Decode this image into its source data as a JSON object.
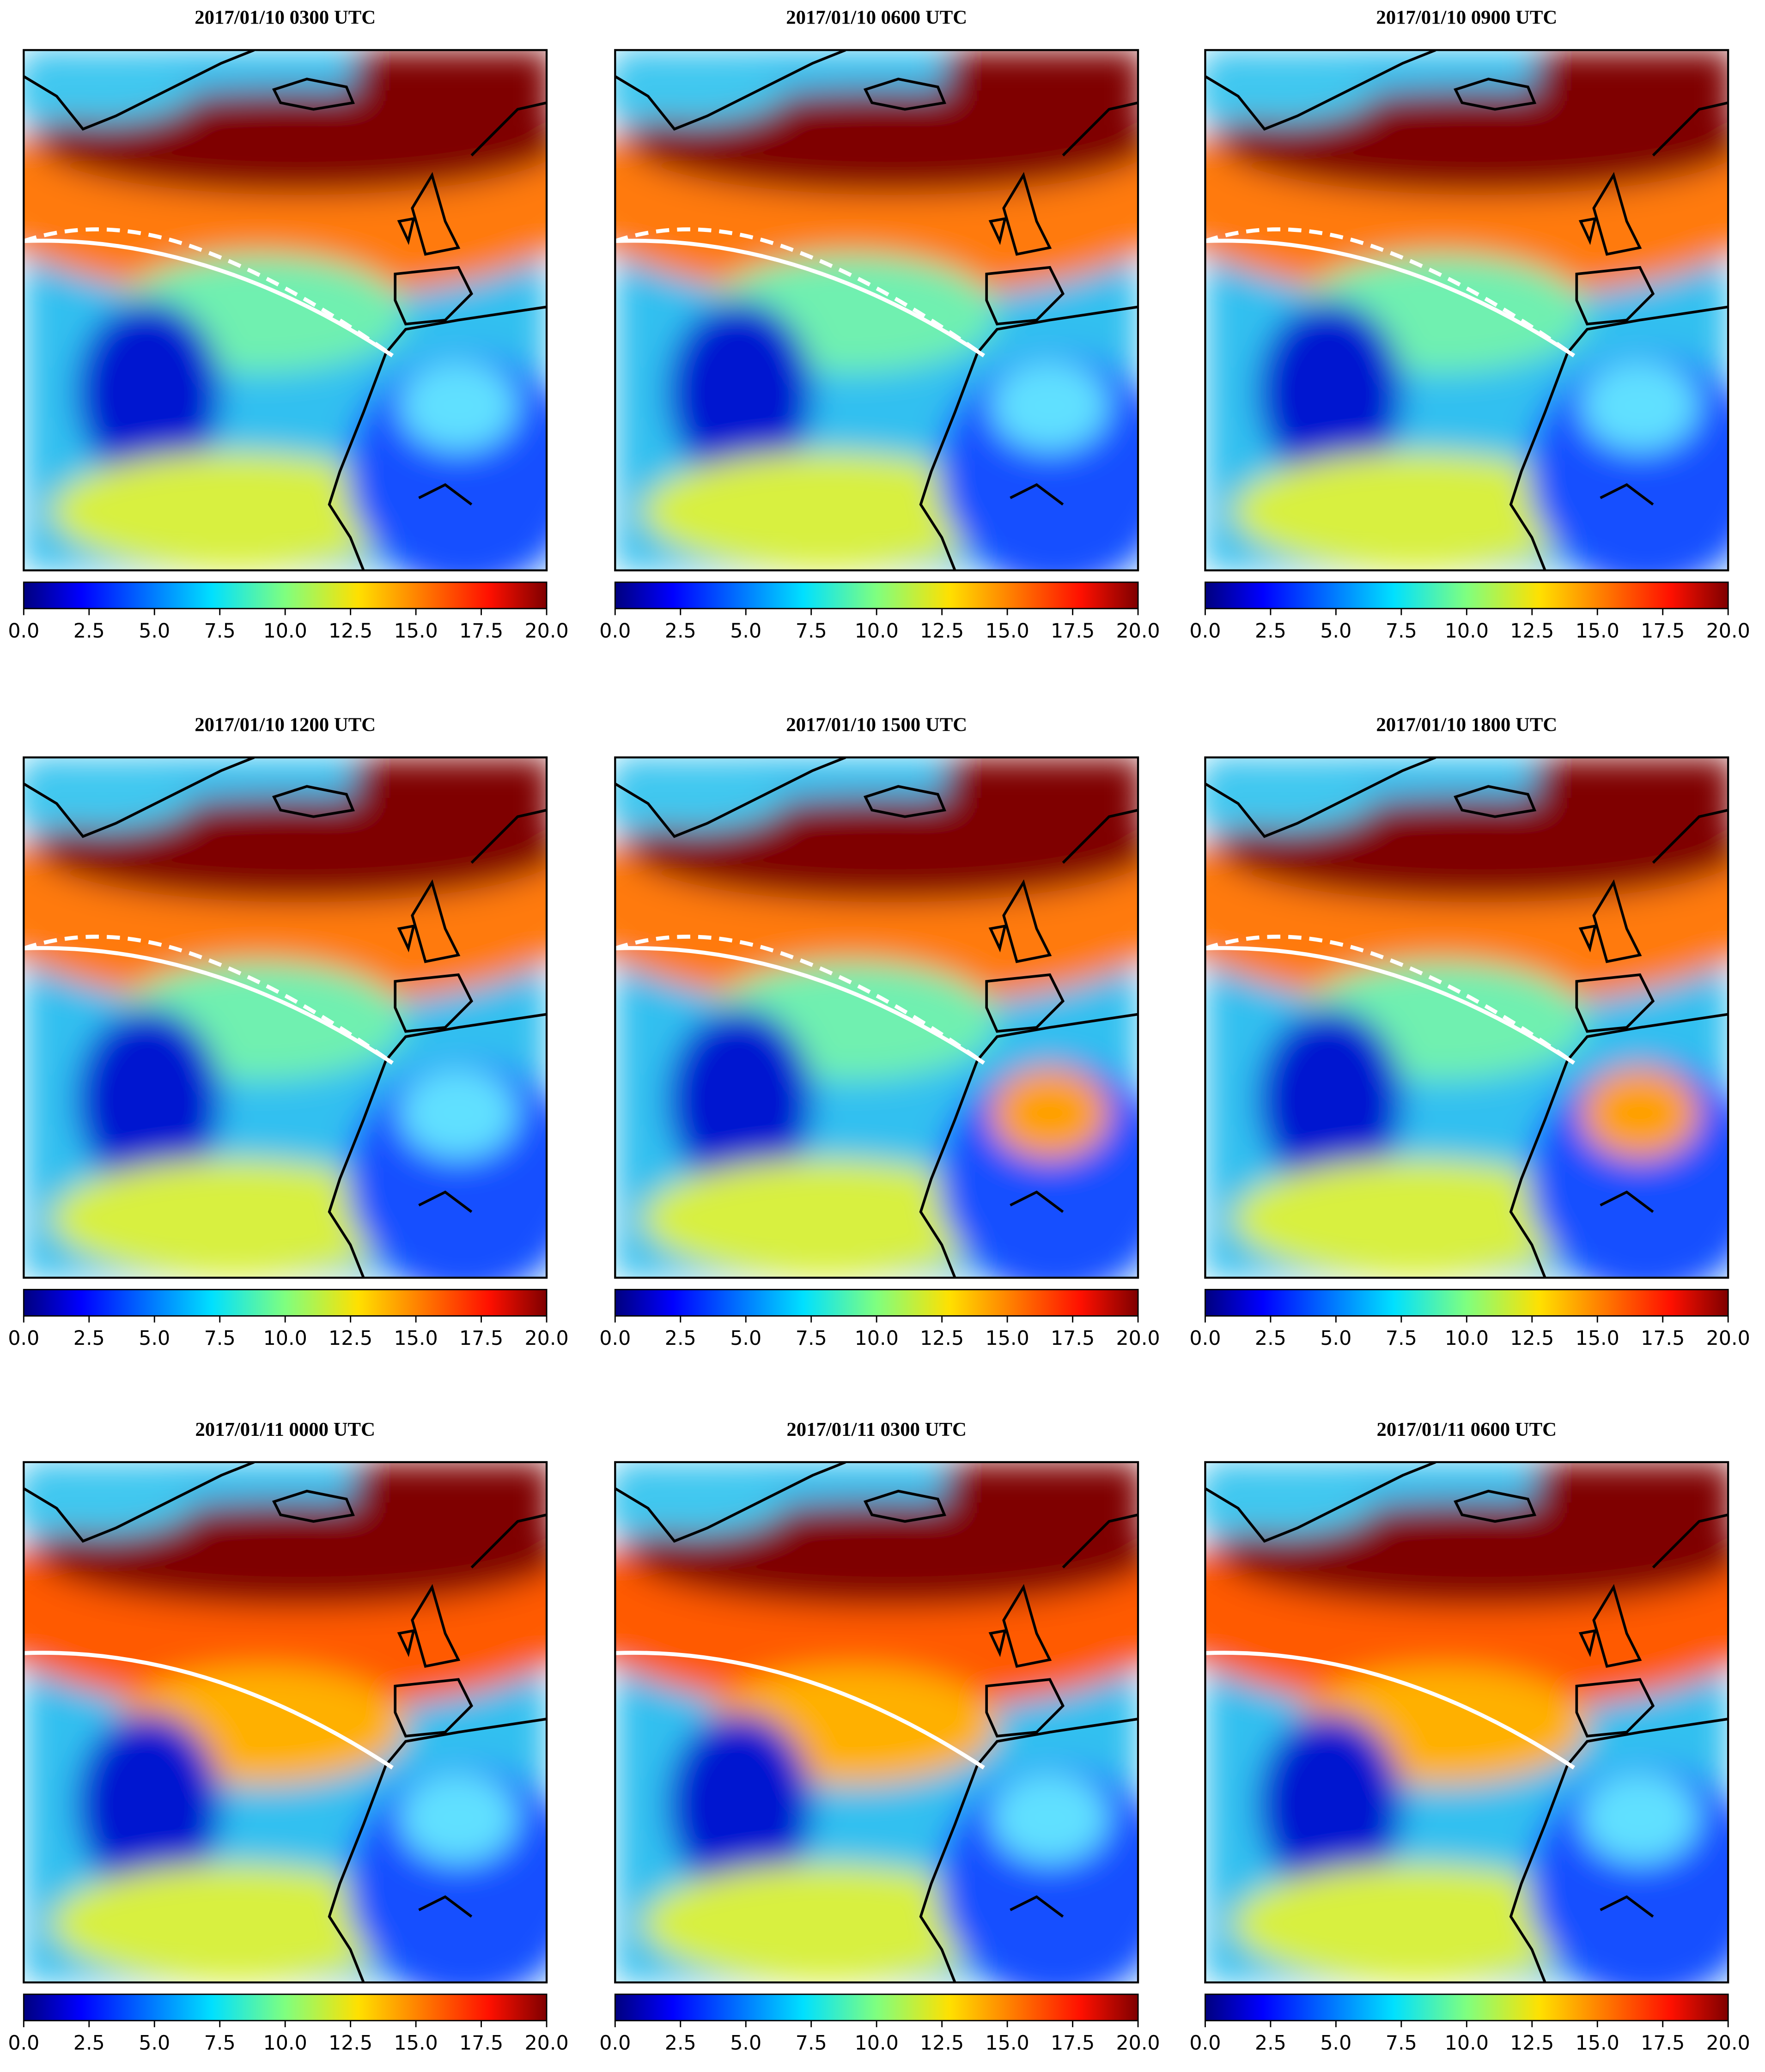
{
  "panels": [
    {
      "title": "2017/01/10 0300 UTC"
    },
    {
      "title": "2017/01/10 0600 UTC"
    },
    {
      "title": "2017/01/10 0900 UTC"
    },
    {
      "title": "2017/01/10 1200 UTC"
    },
    {
      "title": "2017/01/10 1500 UTC"
    },
    {
      "title": "2017/01/10 1800 UTC"
    },
    {
      "title": "2017/01/11 0000 UTC"
    },
    {
      "title": "2017/01/11 0300 UTC"
    },
    {
      "title": "2017/01/11 0600 UTC"
    }
  ],
  "colorbar": {
    "lim": [
      0,
      20
    ],
    "ticks": [
      {
        "value": 0,
        "label": "0.0"
      },
      2.5,
      {
        "value": 5,
        "label": "5.0"
      },
      7.5,
      {
        "value": 10,
        "label": "10.0"
      },
      12.5,
      {
        "value": 15,
        "label": "15.0"
      },
      17.5,
      {
        "value": 20,
        "label": "20.0"
      }
    ]
  }
}
